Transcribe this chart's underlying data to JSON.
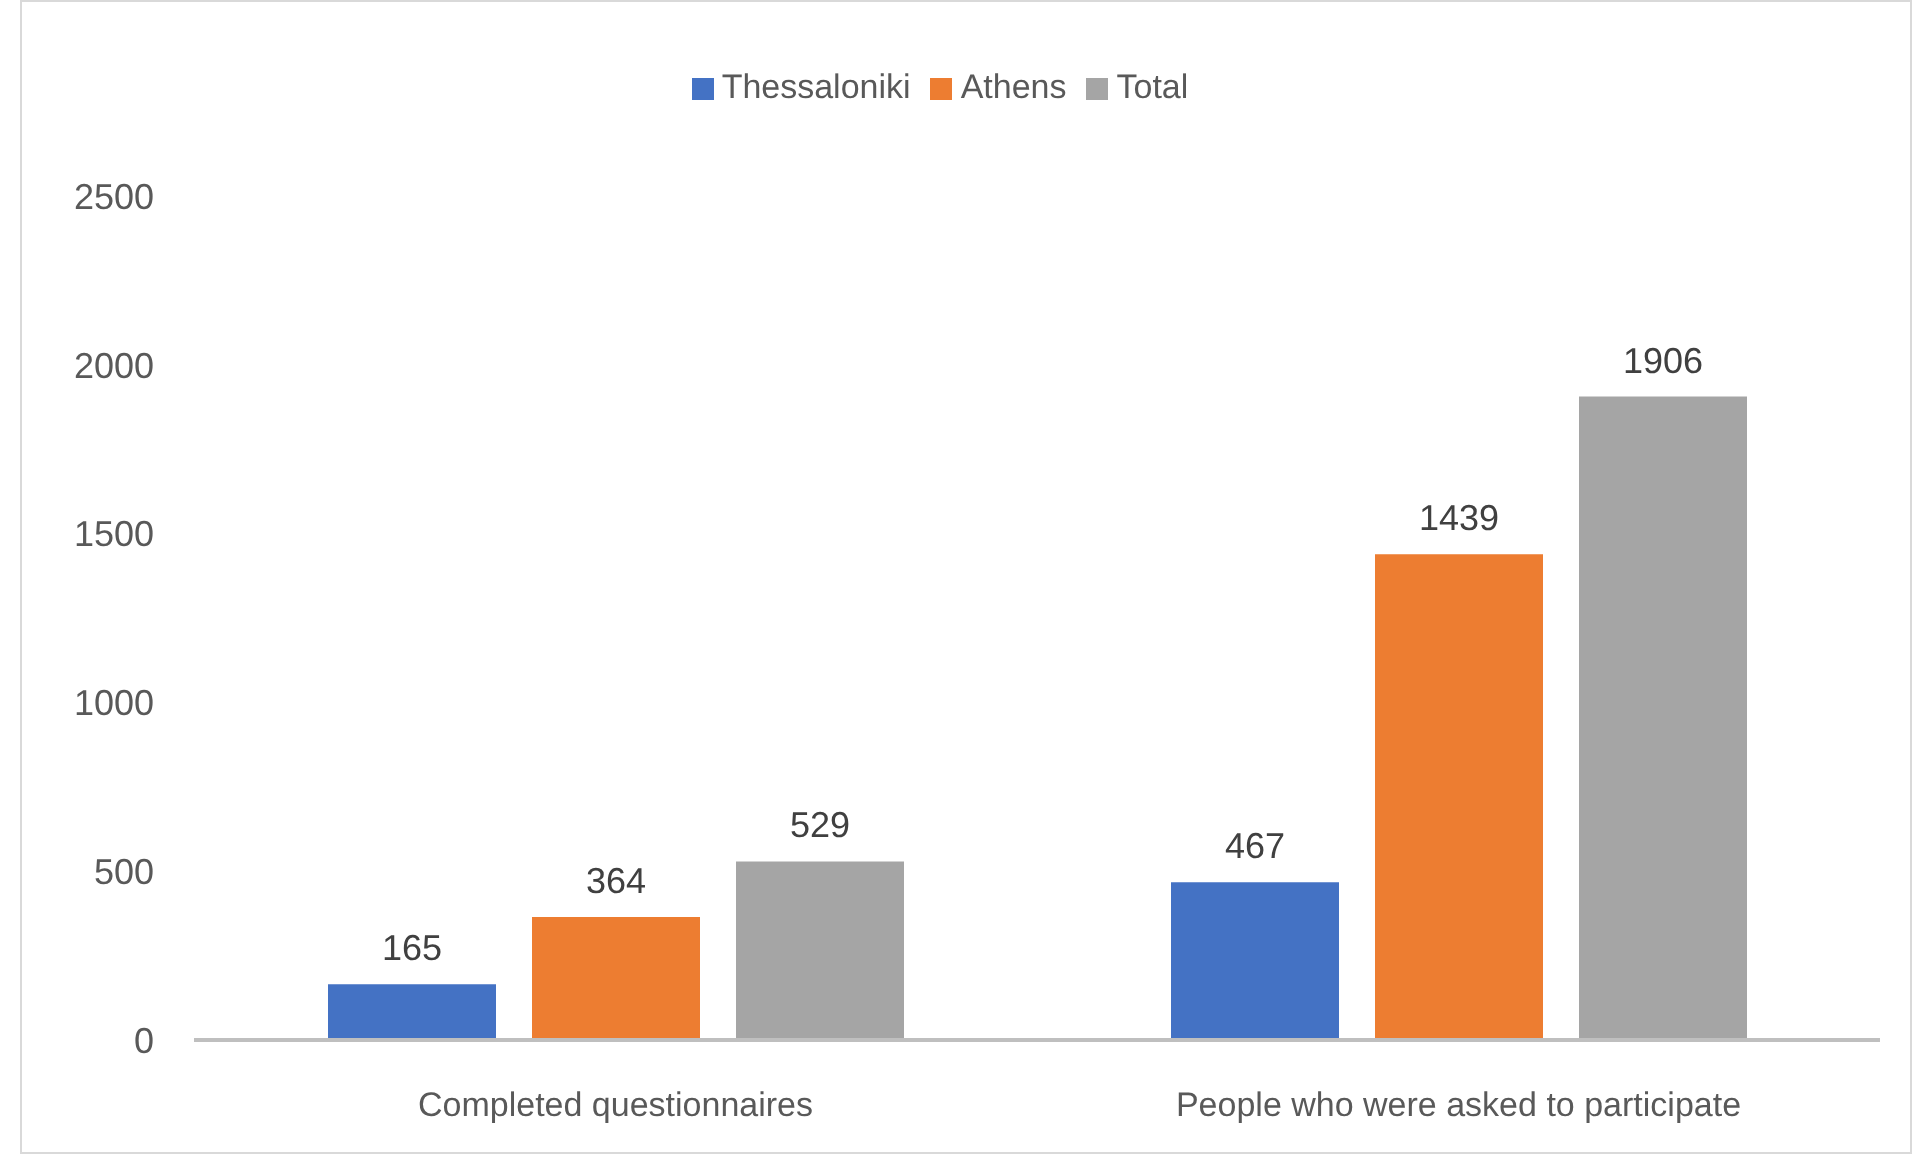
{
  "chart_data": {
    "type": "bar",
    "categories": [
      "Completed questionnaires",
      "People who were asked to participate"
    ],
    "series": [
      {
        "name": "Thessaloniki",
        "color": "#4472c4",
        "values": [
          165,
          467
        ]
      },
      {
        "name": "Athens",
        "color": "#ed7d31",
        "values": [
          364,
          1439
        ]
      },
      {
        "name": "Total",
        "color": "#a5a5a5",
        "values": [
          529,
          1906
        ]
      }
    ],
    "ylim": [
      0,
      2500
    ],
    "yticks": [
      0,
      500,
      1000,
      1500,
      2000,
      2500
    ],
    "legend": "top",
    "data_labels": true
  }
}
